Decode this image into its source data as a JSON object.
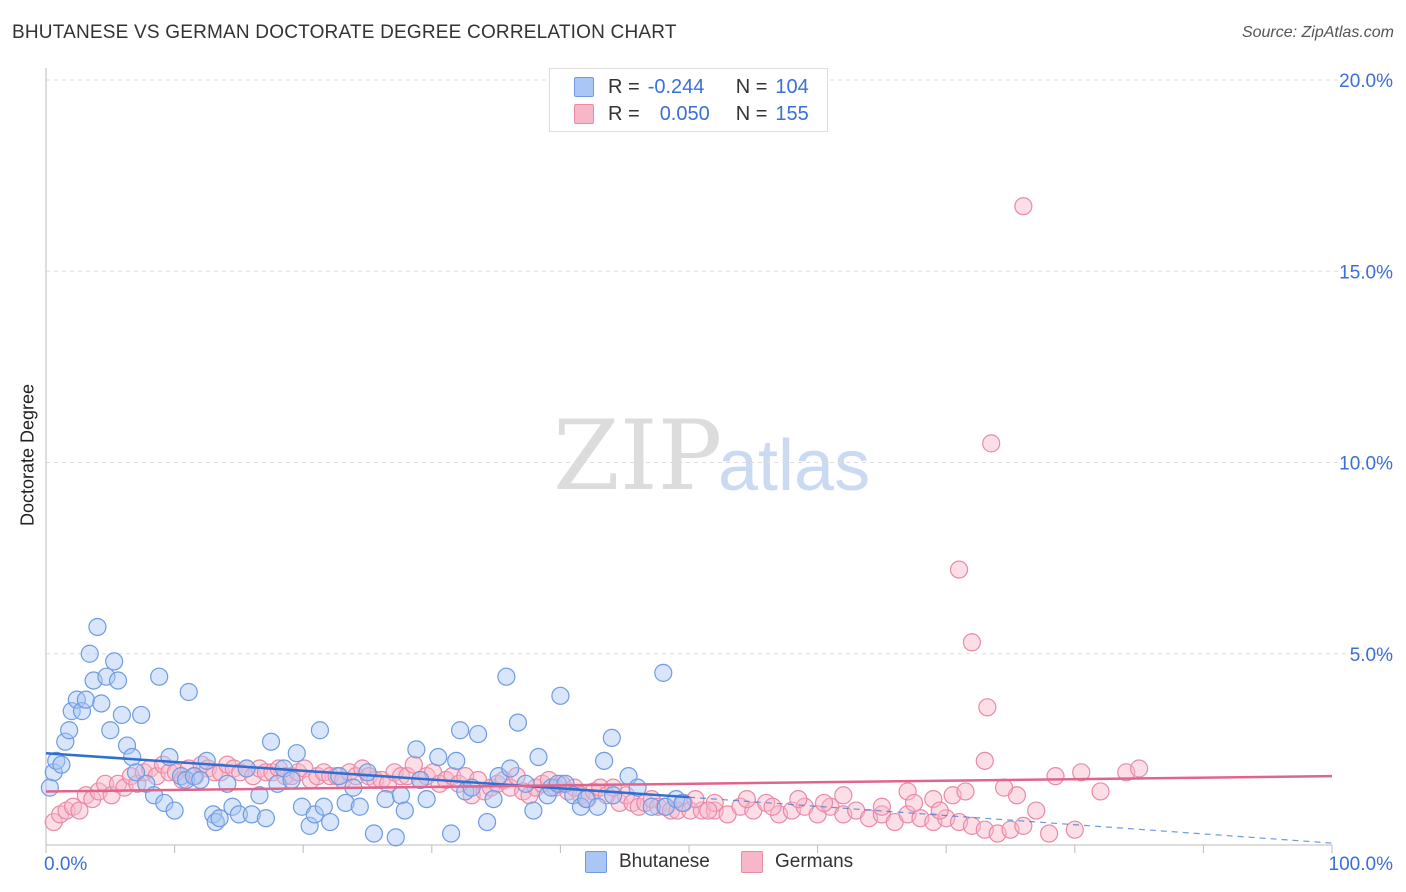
{
  "title": "BHUTANESE VS GERMAN DOCTORATE DEGREE CORRELATION CHART",
  "source": "Source: ZipAtlas.com",
  "watermark": {
    "zip": "ZIP",
    "atlas": "atlas"
  },
  "legend": {
    "rows": [
      {
        "r_label": "R =",
        "r_value": "-0.244",
        "n_label": "N =",
        "n_value": "104",
        "color": "#a9c6f5"
      },
      {
        "r_label": "R =",
        "r_value": "0.050",
        "n_label": "N =",
        "n_value": "155",
        "color": "#f8b6c9"
      }
    ]
  },
  "bottom_legend": {
    "s1": "Bhutanese",
    "s2": "Germans"
  },
  "colors": {
    "blue_fill": "#a9c6f5",
    "blue_stroke": "#6e9be3",
    "blue_line": "#2f6fd1",
    "pink_fill": "#f8b6c9",
    "pink_stroke": "#e98aa6",
    "pink_line": "#e0648e",
    "axis_text": "#3a6fd8",
    "grid": "#dddddd"
  },
  "chart_data": {
    "type": "scatter",
    "title": "BHUTANESE VS GERMAN DOCTORATE DEGREE CORRELATION CHART",
    "xlabel": "",
    "ylabel": "Doctorate Degree",
    "xlim": [
      0,
      100
    ],
    "ylim": [
      0,
      20
    ],
    "x_tick_labels": [
      "0.0%",
      "100.0%"
    ],
    "y_ticks": [
      5,
      10,
      15,
      20
    ],
    "y_tick_labels": [
      "5.0%",
      "10.0%",
      "15.0%",
      "20.0%"
    ],
    "series": [
      {
        "name": "Bhutanese",
        "trend": {
          "x0": 0,
          "y0": 2.4,
          "x1": 50,
          "y1": 1.25,
          "dashed_to": [
            100,
            0.05
          ]
        },
        "points": [
          [
            0.3,
            1.5
          ],
          [
            0.6,
            1.9
          ],
          [
            0.8,
            2.2
          ],
          [
            1.2,
            2.1
          ],
          [
            1.5,
            2.7
          ],
          [
            1.8,
            3.0
          ],
          [
            2.0,
            3.5
          ],
          [
            2.4,
            3.8
          ],
          [
            2.8,
            3.5
          ],
          [
            3.1,
            3.8
          ],
          [
            3.4,
            5.0
          ],
          [
            3.7,
            4.3
          ],
          [
            4.0,
            5.7
          ],
          [
            4.3,
            3.7
          ],
          [
            4.7,
            4.4
          ],
          [
            5.0,
            3.0
          ],
          [
            5.3,
            4.8
          ],
          [
            5.6,
            4.3
          ],
          [
            5.9,
            3.4
          ],
          [
            6.3,
            2.6
          ],
          [
            6.7,
            2.3
          ],
          [
            7.0,
            1.9
          ],
          [
            7.4,
            3.4
          ],
          [
            7.8,
            1.6
          ],
          [
            8.4,
            1.3
          ],
          [
            8.8,
            4.4
          ],
          [
            9.2,
            1.1
          ],
          [
            9.6,
            2.3
          ],
          [
            10.0,
            0.9
          ],
          [
            10.5,
            1.8
          ],
          [
            10.9,
            1.7
          ],
          [
            11.1,
            4.0
          ],
          [
            11.5,
            1.8
          ],
          [
            12.0,
            1.7
          ],
          [
            12.5,
            2.2
          ],
          [
            13.0,
            0.8
          ],
          [
            13.2,
            0.6
          ],
          [
            13.5,
            0.7
          ],
          [
            14.1,
            1.6
          ],
          [
            14.5,
            1.0
          ],
          [
            15.0,
            0.8
          ],
          [
            15.6,
            2.0
          ],
          [
            16.0,
            0.8
          ],
          [
            16.6,
            1.3
          ],
          [
            17.1,
            0.7
          ],
          [
            17.5,
            2.7
          ],
          [
            18.0,
            1.6
          ],
          [
            18.5,
            2.0
          ],
          [
            19.1,
            1.7
          ],
          [
            19.5,
            2.4
          ],
          [
            19.9,
            1.0
          ],
          [
            20.5,
            0.5
          ],
          [
            20.9,
            0.8
          ],
          [
            21.3,
            3.0
          ],
          [
            21.6,
            1.0
          ],
          [
            22.1,
            0.6
          ],
          [
            22.8,
            1.8
          ],
          [
            23.3,
            1.1
          ],
          [
            23.9,
            1.5
          ],
          [
            24.4,
            1.0
          ],
          [
            25.0,
            1.9
          ],
          [
            25.5,
            0.3
          ],
          [
            26.4,
            1.2
          ],
          [
            27.2,
            0.2
          ],
          [
            27.6,
            1.3
          ],
          [
            27.9,
            0.9
          ],
          [
            28.8,
            2.5
          ],
          [
            29.1,
            1.7
          ],
          [
            29.6,
            1.2
          ],
          [
            30.5,
            2.3
          ],
          [
            31.5,
            0.3
          ],
          [
            31.9,
            2.2
          ],
          [
            32.2,
            3.0
          ],
          [
            32.6,
            1.4
          ],
          [
            33.1,
            1.5
          ],
          [
            33.6,
            2.9
          ],
          [
            34.3,
            0.6
          ],
          [
            34.8,
            1.2
          ],
          [
            35.2,
            1.8
          ],
          [
            35.8,
            4.4
          ],
          [
            36.1,
            2.0
          ],
          [
            36.7,
            3.2
          ],
          [
            37.3,
            1.6
          ],
          [
            37.9,
            0.9
          ],
          [
            38.3,
            2.3
          ],
          [
            39.0,
            1.3
          ],
          [
            39.3,
            1.5
          ],
          [
            39.8,
            1.6
          ],
          [
            40.4,
            1.6
          ],
          [
            41.0,
            1.3
          ],
          [
            41.6,
            1.0
          ],
          [
            42.0,
            1.2
          ],
          [
            42.9,
            1.0
          ],
          [
            43.4,
            2.2
          ],
          [
            44.1,
            1.3
          ],
          [
            45.3,
            1.8
          ],
          [
            47.1,
            1.0
          ],
          [
            48.0,
            4.5
          ],
          [
            48.2,
            1.0
          ],
          [
            49.0,
            1.2
          ],
          [
            49.5,
            1.1
          ],
          [
            40.0,
            3.9
          ],
          [
            44.0,
            2.8
          ],
          [
            46.0,
            1.5
          ]
        ]
      },
      {
        "name": "Germans",
        "trend": {
          "x0": 0,
          "y0": 1.4,
          "x1": 100,
          "y1": 1.8
        },
        "points": [
          [
            0.6,
            0.6
          ],
          [
            1.1,
            0.8
          ],
          [
            1.6,
            0.9
          ],
          [
            2.1,
            1.0
          ],
          [
            2.6,
            0.9
          ],
          [
            3.1,
            1.3
          ],
          [
            3.6,
            1.2
          ],
          [
            4.1,
            1.4
          ],
          [
            4.6,
            1.6
          ],
          [
            5.1,
            1.3
          ],
          [
            5.6,
            1.6
          ],
          [
            6.1,
            1.5
          ],
          [
            6.6,
            1.8
          ],
          [
            7.1,
            1.6
          ],
          [
            7.6,
            1.9
          ],
          [
            8.1,
            2.0
          ],
          [
            8.6,
            1.8
          ],
          [
            9.1,
            2.1
          ],
          [
            9.6,
            1.9
          ],
          [
            10.1,
            1.9
          ],
          [
            10.6,
            1.7
          ],
          [
            11.1,
            2.0
          ],
          [
            11.6,
            1.8
          ],
          [
            12.1,
            2.1
          ],
          [
            12.6,
            2.0
          ],
          [
            13.1,
            1.9
          ],
          [
            13.6,
            1.9
          ],
          [
            14.1,
            2.1
          ],
          [
            14.6,
            2.0
          ],
          [
            15.1,
            1.9
          ],
          [
            15.6,
            2.0
          ],
          [
            16.1,
            1.8
          ],
          [
            16.6,
            2.0
          ],
          [
            17.1,
            1.9
          ],
          [
            17.6,
            1.9
          ],
          [
            18.1,
            2.0
          ],
          [
            18.6,
            1.8
          ],
          [
            19.1,
            1.8
          ],
          [
            19.6,
            1.9
          ],
          [
            20.1,
            2.0
          ],
          [
            20.6,
            1.7
          ],
          [
            21.1,
            1.8
          ],
          [
            21.6,
            1.9
          ],
          [
            22.1,
            1.8
          ],
          [
            22.6,
            1.8
          ],
          [
            23.1,
            1.7
          ],
          [
            23.6,
            1.9
          ],
          [
            24.1,
            1.8
          ],
          [
            24.6,
            2.0
          ],
          [
            25.1,
            1.8
          ],
          [
            25.6,
            1.7
          ],
          [
            26.1,
            1.7
          ],
          [
            26.6,
            1.6
          ],
          [
            27.1,
            1.9
          ],
          [
            27.6,
            1.8
          ],
          [
            28.1,
            1.8
          ],
          [
            28.6,
            2.1
          ],
          [
            29.1,
            1.7
          ],
          [
            29.6,
            1.8
          ],
          [
            30.1,
            1.9
          ],
          [
            30.6,
            1.6
          ],
          [
            31.1,
            1.7
          ],
          [
            31.6,
            1.8
          ],
          [
            32.1,
            1.6
          ],
          [
            32.6,
            1.8
          ],
          [
            33.1,
            1.3
          ],
          [
            33.6,
            1.7
          ],
          [
            34.1,
            1.4
          ],
          [
            34.6,
            1.5
          ],
          [
            35.1,
            1.6
          ],
          [
            35.6,
            1.7
          ],
          [
            36.1,
            1.5
          ],
          [
            36.6,
            1.8
          ],
          [
            37.1,
            1.4
          ],
          [
            37.6,
            1.3
          ],
          [
            38.1,
            1.5
          ],
          [
            38.6,
            1.6
          ],
          [
            39.1,
            1.7
          ],
          [
            39.6,
            1.5
          ],
          [
            40.1,
            1.6
          ],
          [
            40.6,
            1.4
          ],
          [
            41.1,
            1.5
          ],
          [
            41.6,
            1.3
          ],
          [
            42.1,
            1.2
          ],
          [
            42.6,
            1.4
          ],
          [
            43.1,
            1.5
          ],
          [
            43.6,
            1.3
          ],
          [
            44.1,
            1.5
          ],
          [
            44.6,
            1.1
          ],
          [
            45.1,
            1.3
          ],
          [
            45.6,
            1.1
          ],
          [
            46.1,
            1.0
          ],
          [
            46.6,
            1.1
          ],
          [
            47.1,
            1.2
          ],
          [
            47.6,
            1.0
          ],
          [
            48.1,
            1.0
          ],
          [
            48.6,
            0.9
          ],
          [
            49.1,
            0.9
          ],
          [
            49.6,
            1.1
          ],
          [
            50.1,
            0.9
          ],
          [
            51.0,
            0.9
          ],
          [
            52.0,
            0.9
          ],
          [
            53.0,
            0.8
          ],
          [
            54.0,
            1.0
          ],
          [
            55.0,
            0.9
          ],
          [
            56.0,
            1.1
          ],
          [
            57.0,
            0.8
          ],
          [
            58.0,
            0.9
          ],
          [
            59.0,
            1.0
          ],
          [
            60.0,
            0.8
          ],
          [
            61.0,
            1.0
          ],
          [
            62.0,
            0.8
          ],
          [
            63.0,
            0.9
          ],
          [
            64.0,
            0.7
          ],
          [
            65.0,
            0.8
          ],
          [
            66.0,
            0.6
          ],
          [
            67.0,
            0.8
          ],
          [
            68.0,
            0.7
          ],
          [
            69.0,
            0.6
          ],
          [
            70.0,
            0.7
          ],
          [
            71.0,
            0.6
          ],
          [
            72.0,
            0.5
          ],
          [
            73.0,
            0.4
          ],
          [
            74.0,
            0.3
          ],
          [
            75.0,
            0.4
          ],
          [
            76.0,
            0.5
          ],
          [
            78.0,
            0.3
          ],
          [
            80.0,
            0.4
          ],
          [
            52.0,
            1.1
          ],
          [
            54.5,
            1.2
          ],
          [
            56.5,
            1.0
          ],
          [
            58.5,
            1.2
          ],
          [
            60.5,
            1.1
          ],
          [
            62.0,
            1.3
          ],
          [
            65.0,
            1.0
          ],
          [
            67.0,
            1.4
          ],
          [
            69.0,
            1.2
          ],
          [
            70.5,
            1.3
          ],
          [
            73.0,
            2.2
          ],
          [
            75.5,
            1.3
          ],
          [
            77.0,
            0.9
          ],
          [
            78.5,
            1.8
          ],
          [
            80.5,
            1.9
          ],
          [
            82.0,
            1.4
          ],
          [
            84.0,
            1.9
          ],
          [
            85.0,
            2.0
          ],
          [
            67.5,
            1.1
          ],
          [
            69.5,
            0.9
          ],
          [
            71.5,
            1.4
          ],
          [
            74.5,
            1.5
          ],
          [
            76.0,
            16.7
          ],
          [
            73.5,
            10.5
          ],
          [
            71.0,
            7.2
          ],
          [
            72.0,
            5.3
          ],
          [
            73.2,
            3.6
          ],
          [
            50.5,
            1.2
          ],
          [
            51.5,
            0.9
          ]
        ]
      }
    ]
  }
}
